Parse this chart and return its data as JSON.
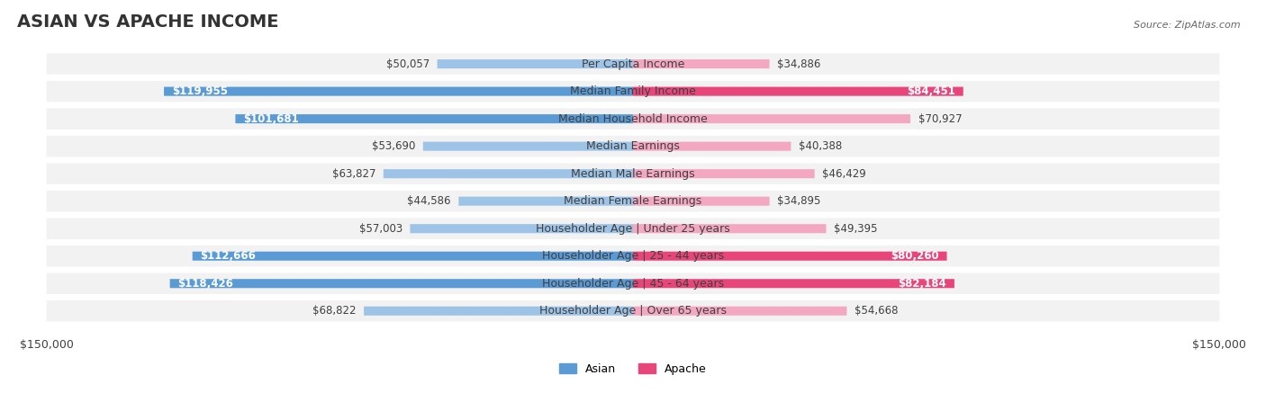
{
  "title": "ASIAN VS APACHE INCOME",
  "source": "Source: ZipAtlas.com",
  "categories": [
    "Per Capita Income",
    "Median Family Income",
    "Median Household Income",
    "Median Earnings",
    "Median Male Earnings",
    "Median Female Earnings",
    "Householder Age | Under 25 years",
    "Householder Age | 25 - 44 years",
    "Householder Age | 45 - 64 years",
    "Householder Age | Over 65 years"
  ],
  "asian_values": [
    50057,
    119955,
    101681,
    53690,
    63827,
    44586,
    57003,
    112666,
    118426,
    68822
  ],
  "apache_values": [
    34886,
    84451,
    70927,
    40388,
    46429,
    34895,
    49395,
    80260,
    82184,
    54668
  ],
  "max_value": 150000,
  "asian_color_high": "#5b9bd5",
  "asian_color_low": "#9dc3e6",
  "apache_color_high": "#e8457a",
  "apache_color_low": "#f4a7c0",
  "background_color": "#ffffff",
  "row_bg_color": "#f0f0f0",
  "title_fontsize": 14,
  "label_fontsize": 9,
  "value_fontsize": 8.5,
  "legend_fontsize": 9,
  "source_fontsize": 8
}
